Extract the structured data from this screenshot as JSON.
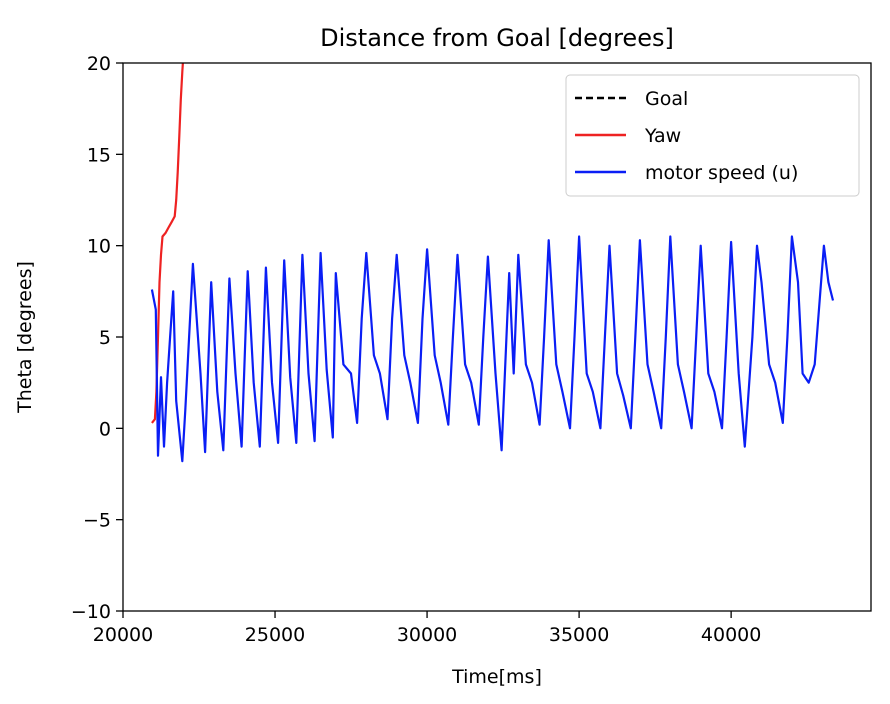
{
  "chart_data": {
    "type": "line",
    "title": "Distance from Goal [degrees]",
    "xlabel": "Time[ms]",
    "ylabel": "Theta [degrees]",
    "xlim": [
      20000,
      44600
    ],
    "ylim": [
      -10,
      20
    ],
    "xticks": [
      20000,
      25000,
      30000,
      35000,
      40000
    ],
    "xtick_labels": [
      "20000",
      "25000",
      "30000",
      "35000",
      "40000"
    ],
    "yticks": [
      -10,
      -5,
      0,
      5,
      10,
      15,
      20
    ],
    "ytick_labels": [
      "−10",
      "−5",
      "0",
      "5",
      "10",
      "15",
      "20"
    ],
    "grid": false,
    "legend_position": "top-right",
    "series": [
      {
        "name": "Goal",
        "color": "#000000",
        "style": "dashed",
        "x": [],
        "y": []
      },
      {
        "name": "Yaw",
        "color": "#ee2222",
        "style": "solid",
        "x": [
          20950,
          21050,
          21100,
          21150,
          21200,
          21250,
          21300,
          21400,
          21500,
          21600,
          21700,
          21750,
          21800,
          21850,
          21900,
          21950,
          22000
        ],
        "y": [
          0.3,
          0.5,
          2.0,
          5.0,
          8.0,
          9.5,
          10.5,
          10.7,
          11.0,
          11.3,
          11.6,
          12.5,
          14.0,
          16.0,
          18.0,
          19.5,
          20.8
        ]
      },
      {
        "name": "motor speed (u)",
        "color": "#0a1ef5",
        "style": "solid",
        "x": [
          20950,
          21080,
          21150,
          21250,
          21350,
          21450,
          21550,
          21650,
          21750,
          21950,
          22050,
          22300,
          22550,
          22700,
          22900,
          23100,
          23300,
          23500,
          23700,
          23900,
          24100,
          24300,
          24500,
          24700,
          24900,
          25100,
          25300,
          25500,
          25700,
          25900,
          26100,
          26300,
          26500,
          26700,
          26900,
          27000,
          27250,
          27500,
          27700,
          27850,
          28000,
          28250,
          28450,
          28700,
          28850,
          29000,
          29250,
          29450,
          29700,
          29850,
          30000,
          30250,
          30450,
          30700,
          30850,
          31000,
          31250,
          31450,
          31700,
          31850,
          32000,
          32250,
          32450,
          32700,
          32850,
          33000,
          33250,
          33450,
          33700,
          33850,
          34000,
          34250,
          34450,
          34700,
          34850,
          35000,
          35250,
          35450,
          35700,
          35850,
          36000,
          36250,
          36450,
          36700,
          36850,
          37000,
          37250,
          37450,
          37700,
          37850,
          38000,
          38250,
          38450,
          38700,
          38850,
          39000,
          39250,
          39450,
          39700,
          39850,
          40000,
          40250,
          40450,
          40700,
          40850,
          41000,
          41250,
          41450,
          41700,
          41850,
          42000,
          42200,
          42350,
          42550,
          42750,
          43050,
          43200,
          43350
        ],
        "y": [
          7.6,
          6.5,
          -1.5,
          2.8,
          -1.0,
          2.5,
          5.0,
          7.5,
          1.5,
          -1.8,
          1.0,
          9.0,
          3.0,
          -1.3,
          8.0,
          2.0,
          -1.2,
          8.2,
          3.0,
          -1.0,
          8.6,
          2.5,
          -1.0,
          8.8,
          2.5,
          -0.8,
          9.2,
          2.8,
          -0.8,
          9.5,
          3.0,
          -0.7,
          9.6,
          3.2,
          -0.5,
          8.5,
          3.5,
          3.0,
          0.3,
          6.0,
          9.6,
          4.0,
          3.0,
          0.5,
          6.0,
          9.5,
          4.0,
          2.5,
          0.3,
          6.0,
          9.8,
          4.0,
          2.5,
          0.2,
          5.0,
          9.5,
          3.5,
          2.5,
          0.2,
          5.0,
          9.4,
          3.0,
          -1.2,
          8.5,
          3.0,
          9.5,
          3.5,
          2.5,
          0.2,
          5.0,
          10.3,
          3.5,
          2.0,
          0.0,
          5.0,
          10.5,
          3.0,
          2.0,
          0.0,
          5.0,
          10.0,
          3.0,
          1.8,
          0.0,
          5.0,
          10.3,
          3.5,
          2.0,
          0.0,
          5.0,
          10.5,
          3.5,
          2.0,
          0.0,
          5.0,
          10.0,
          3.0,
          2.0,
          0.0,
          5.0,
          10.2,
          3.0,
          -1.0,
          5.0,
          10.0,
          8.0,
          3.5,
          2.5,
          0.3,
          5.0,
          10.5,
          8.0,
          3.0,
          2.5,
          3.5,
          10.0,
          8.0,
          7.0
        ]
      }
    ]
  }
}
